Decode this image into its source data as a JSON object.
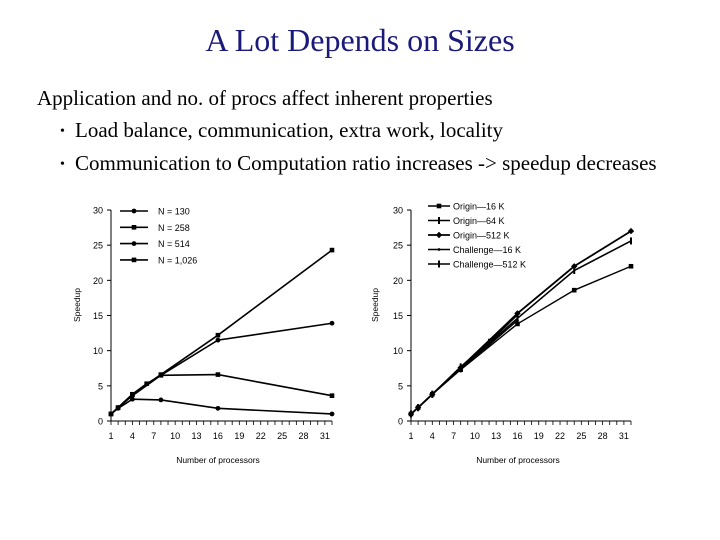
{
  "slide": {
    "title": "A Lot Depends on Sizes",
    "intro": "Application and no. of procs affect inherent properties",
    "bullets": [
      "Load balance, communication, extra work, locality",
      "Communication to Computation ratio increases -> speedup decreases"
    ],
    "bullet_icon": "bullet-dot"
  },
  "chart_data": [
    {
      "type": "line",
      "title": "",
      "xlabel": "Number of processors",
      "ylabel": "Speedup",
      "xlim": [
        1,
        32
      ],
      "ylim": [
        0,
        30
      ],
      "x_ticks": [
        "1",
        "4",
        "7",
        "10",
        "13",
        "16",
        "19",
        "22",
        "25",
        "28",
        "31"
      ],
      "y_ticks": [
        "0",
        "5",
        "10",
        "15",
        "20",
        "25",
        "30"
      ],
      "legend_position": "top-left",
      "series": [
        {
          "name": "N = 130",
          "x": [
            1,
            2,
            4,
            8,
            16,
            32
          ],
          "y": [
            1,
            1.8,
            3.1,
            3.0,
            1.8,
            1.0
          ]
        },
        {
          "name": "N = 258",
          "x": [
            1,
            2,
            4,
            6,
            8,
            16,
            32
          ],
          "y": [
            1,
            1.9,
            3.8,
            5.3,
            6.5,
            6.6,
            3.6
          ]
        },
        {
          "name": "N = 514",
          "x": [
            1,
            2,
            4,
            8,
            16,
            32
          ],
          "y": [
            1,
            1.9,
            3.6,
            6.5,
            11.5,
            13.9
          ]
        },
        {
          "name": "N = 1,026",
          "x": [
            1,
            2,
            4,
            8,
            16,
            32
          ],
          "y": [
            1,
            1.9,
            3.8,
            6.6,
            12.2,
            24.3
          ]
        }
      ]
    },
    {
      "type": "line",
      "title": "",
      "xlabel": "Number of processors",
      "ylabel": "Speedup",
      "xlim": [
        1,
        32
      ],
      "ylim": [
        0,
        30
      ],
      "x_ticks": [
        "1",
        "4",
        "7",
        "10",
        "13",
        "16",
        "19",
        "22",
        "25",
        "28",
        "31"
      ],
      "y_ticks": [
        "0",
        "5",
        "10",
        "15",
        "20",
        "25",
        "30"
      ],
      "legend_position": "top-right",
      "series": [
        {
          "name": "Origin—16 K",
          "x": [
            1,
            2,
            4,
            8,
            16,
            24,
            32
          ],
          "y": [
            1,
            1.9,
            3.8,
            7.3,
            13.8,
            18.6,
            22.0
          ]
        },
        {
          "name": "Origin—64 K",
          "x": [
            1,
            2,
            4,
            8,
            16,
            24,
            32
          ],
          "y": [
            1,
            1.9,
            3.8,
            7.4,
            14.6,
            21.4,
            25.6
          ]
        },
        {
          "name": "Origin—512 K",
          "x": [
            1,
            2,
            4,
            8,
            16,
            24,
            32
          ],
          "y": [
            1,
            1.9,
            3.8,
            7.6,
            15.3,
            22.0,
            27.0
          ]
        },
        {
          "name": "Challenge—16 K",
          "x": [
            1,
            2,
            4,
            8,
            12,
            16
          ],
          "y": [
            1,
            1.9,
            3.8,
            7.5,
            10.8,
            14.3
          ]
        },
        {
          "name": "Challenge—512 K",
          "x": [
            1,
            2,
            4,
            8,
            12,
            16
          ],
          "y": [
            1,
            1.9,
            3.8,
            7.7,
            11.2,
            15.1
          ]
        }
      ]
    }
  ]
}
